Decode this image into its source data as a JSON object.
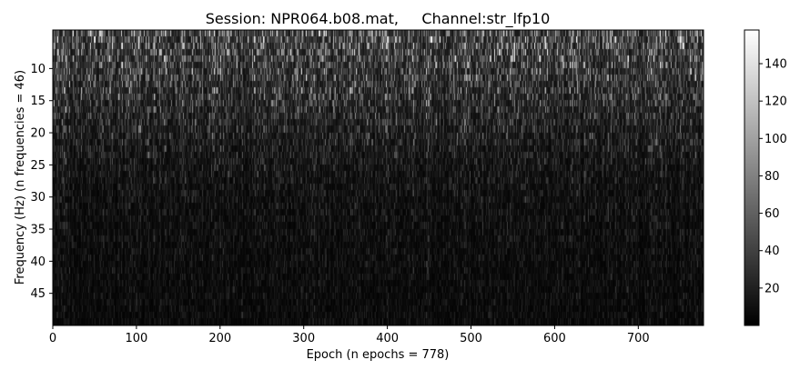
{
  "chart_data": {
    "type": "heatmap",
    "title": "Session: NPR064.b08.mat,     Channel:str_lfp10",
    "xlabel": "Epoch (n epochs = 778)",
    "ylabel": "Frequency (Hz) (n frequencies = 46)",
    "x_range": [
      0,
      778
    ],
    "y_range": [
      4,
      50
    ],
    "y_inverted": true,
    "n_epochs": 778,
    "n_frequencies": 46,
    "colormap": "gray",
    "x_ticks": [
      0,
      100,
      200,
      300,
      400,
      500,
      600,
      700
    ],
    "y_ticks": [
      10,
      15,
      20,
      25,
      30,
      35,
      40,
      45
    ],
    "colorbar": {
      "range": [
        0,
        158
      ],
      "ticks": [
        20,
        40,
        60,
        80,
        100,
        120,
        140
      ]
    },
    "intensity_profile_by_frequency": [
      {
        "freq_hz": 4,
        "mean": 58
      },
      {
        "freq_hz": 8,
        "mean": 50
      },
      {
        "freq_hz": 12,
        "mean": 42
      },
      {
        "freq_hz": 16,
        "mean": 34
      },
      {
        "freq_hz": 20,
        "mean": 26
      },
      {
        "freq_hz": 25,
        "mean": 18
      },
      {
        "freq_hz": 30,
        "mean": 14
      },
      {
        "freq_hz": 40,
        "mean": 11
      },
      {
        "freq_hz": 50,
        "mean": 9
      }
    ]
  }
}
